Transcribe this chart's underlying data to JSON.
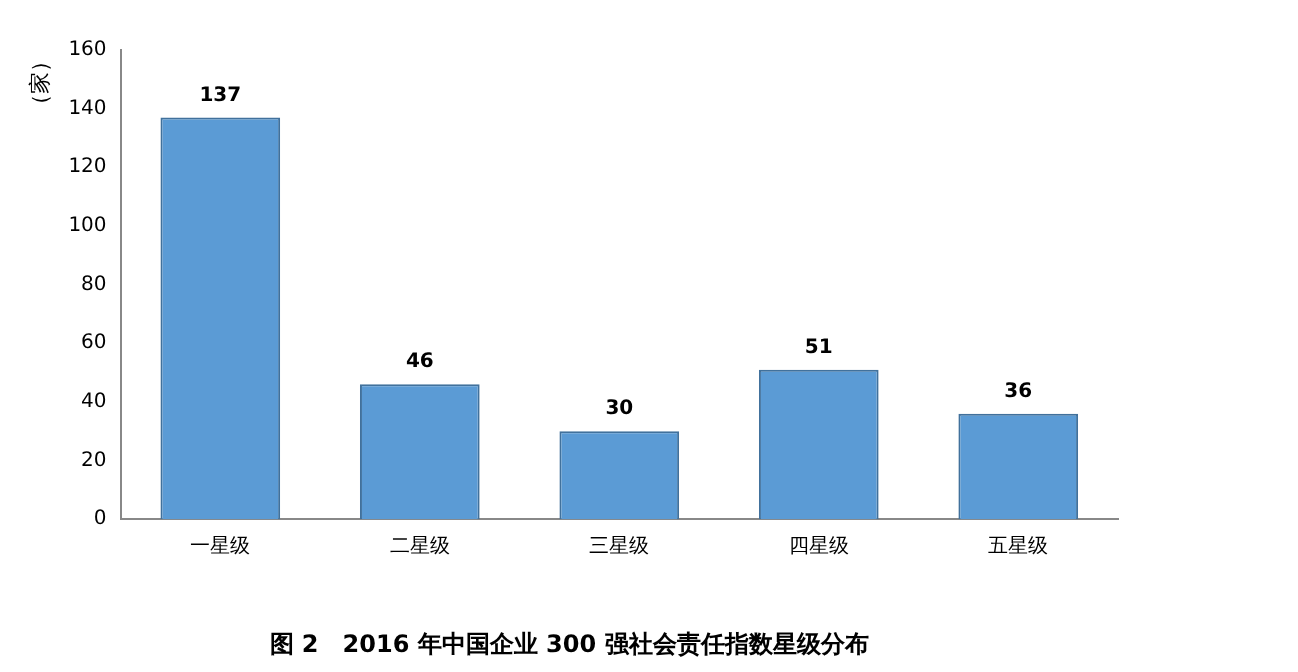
{
  "chart_data": {
    "type": "bar",
    "title": "图 2　2016 年中国企业 300 强社会责任指数星级分布",
    "ylabel": "（家）",
    "categories": [
      "一星级",
      "二星级",
      "三星级",
      "四星级",
      "五星级"
    ],
    "values": [
      137,
      46,
      30,
      51,
      36
    ],
    "color": "#5b9bd5",
    "ylim": [
      0,
      160
    ],
    "yticks": [
      0,
      20,
      40,
      60,
      80,
      100,
      120,
      140,
      160
    ],
    "grid": false,
    "legend": false,
    "data_labels": true
  }
}
